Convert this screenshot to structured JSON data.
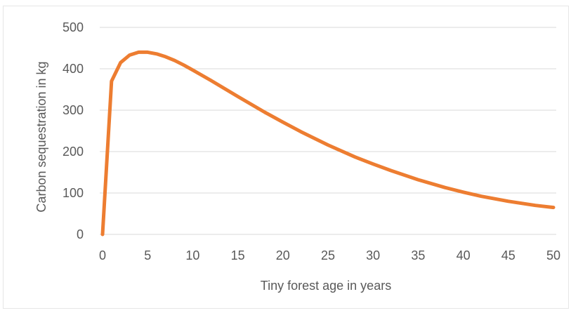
{
  "chart_data": {
    "type": "line",
    "title": "",
    "xlabel": "Tiny forest age in years",
    "ylabel": "Carbon sequestration in kg",
    "xlim": [
      0,
      50
    ],
    "ylim": [
      0,
      500
    ],
    "xticks": [
      "0",
      "5",
      "10",
      "15",
      "20",
      "25",
      "30",
      "35",
      "40",
      "45",
      "50"
    ],
    "yticks": [
      "0",
      "100",
      "200",
      "300",
      "400",
      "500"
    ],
    "grid": "horizontal",
    "legend": "none",
    "series": [
      {
        "color": "#ED7D31",
        "points": [
          [
            0,
            0
          ],
          [
            1,
            370
          ],
          [
            2,
            415
          ],
          [
            3,
            433
          ],
          [
            4,
            440
          ],
          [
            5,
            440
          ],
          [
            6,
            436
          ],
          [
            7,
            429
          ],
          [
            8,
            420
          ],
          [
            9,
            409
          ],
          [
            10,
            397
          ],
          [
            12,
            372
          ],
          [
            15,
            333
          ],
          [
            18,
            295
          ],
          [
            20,
            271
          ],
          [
            22,
            248
          ],
          [
            25,
            216
          ],
          [
            28,
            187
          ],
          [
            30,
            170
          ],
          [
            32,
            154
          ],
          [
            35,
            132
          ],
          [
            38,
            113
          ],
          [
            40,
            102
          ],
          [
            42,
            92
          ],
          [
            45,
            80
          ],
          [
            48,
            70
          ],
          [
            50,
            65
          ]
        ]
      }
    ]
  }
}
